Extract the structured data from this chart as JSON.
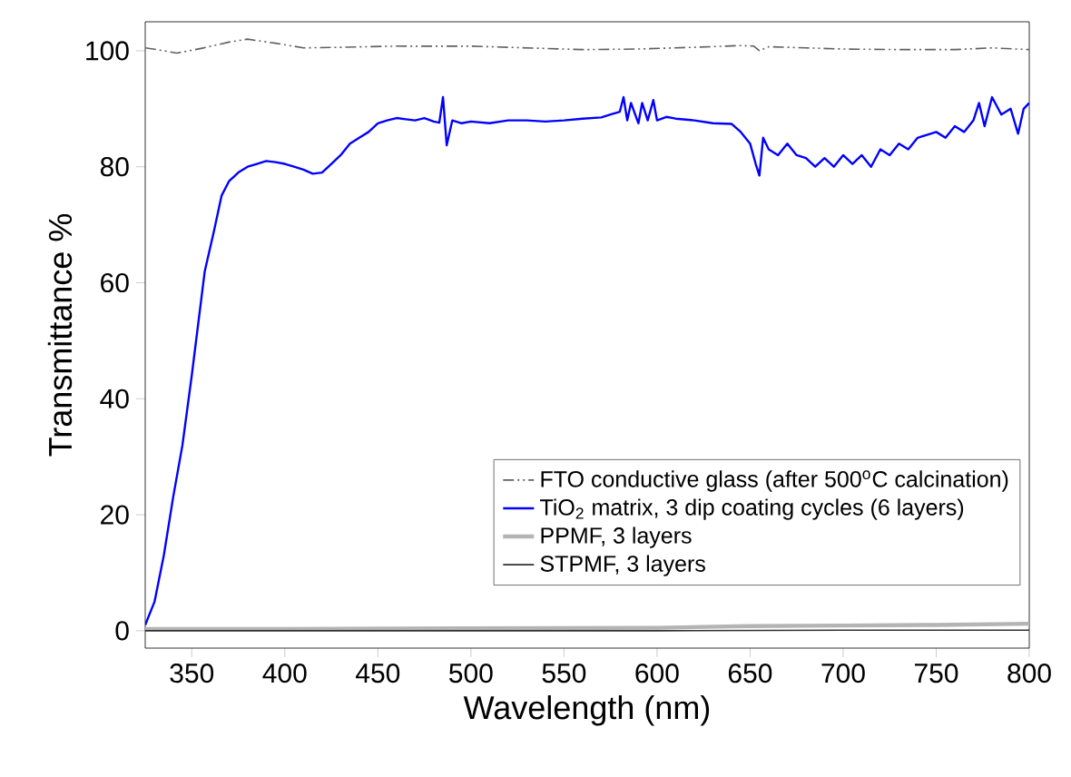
{
  "chart_data": {
    "type": "line",
    "xlabel": "Wavelength (nm)",
    "ylabel": "Transmittance %",
    "xlim": [
      325,
      800
    ],
    "ylim": [
      -3,
      105
    ],
    "xticks": [
      350,
      400,
      450,
      500,
      550,
      600,
      650,
      700,
      750,
      800
    ],
    "yticks": [
      0,
      20,
      40,
      60,
      80,
      100
    ],
    "grid": false,
    "legend": "bottom right",
    "marker": "none",
    "series": [
      {
        "name": "FTO conductive glass (after 500$^{o}$C calcination)",
        "color": "#606060",
        "line_style": "dashdot",
        "x": [
          325,
          335,
          342,
          355,
          370,
          380,
          395,
          410,
          430,
          460,
          500,
          530,
          560,
          590,
          620,
          645,
          652,
          655,
          660,
          680,
          700,
          730,
          760,
          780,
          800
        ],
        "values": [
          100.5,
          100,
          99.6,
          100.4,
          101.5,
          102,
          101.3,
          100.5,
          100.6,
          100.8,
          100.8,
          100.5,
          100.2,
          100.3,
          100.6,
          100.9,
          100.8,
          100,
          100.7,
          100.5,
          100.3,
          100.2,
          100.2,
          100.5,
          100.2
        ]
      },
      {
        "name": "TiO$_{2}$ matrix, 3 dip coating cycles (6 layers)",
        "color": "#0000ff",
        "line_style": "solid",
        "x": [
          325,
          330,
          335,
          340,
          345,
          350,
          357,
          362,
          366,
          370,
          375,
          380,
          385,
          390,
          395,
          400,
          405,
          410,
          415,
          420,
          425,
          430,
          435,
          440,
          445,
          450,
          455,
          460,
          465,
          470,
          475,
          480,
          483,
          485,
          487,
          490,
          495,
          500,
          510,
          520,
          530,
          540,
          550,
          560,
          570,
          575,
          580,
          582,
          584,
          586,
          590,
          592,
          595,
          598,
          600,
          605,
          610,
          620,
          630,
          640,
          645,
          650,
          653,
          655,
          657,
          660,
          665,
          670,
          675,
          680,
          685,
          690,
          695,
          700,
          705,
          710,
          715,
          720,
          725,
          730,
          735,
          740,
          745,
          750,
          755,
          760,
          765,
          770,
          773,
          776,
          780,
          785,
          790,
          794,
          797,
          800
        ],
        "values": [
          1,
          5,
          13,
          23,
          32,
          44,
          62,
          69,
          75,
          77.5,
          79,
          80,
          80.5,
          81,
          80.8,
          80.5,
          80,
          79.5,
          78.8,
          79,
          80.5,
          82,
          84,
          85,
          86,
          87.5,
          88,
          88.4,
          88.2,
          88,
          88.4,
          87.8,
          87.6,
          92,
          83.7,
          88,
          87.5,
          87.8,
          87.5,
          88,
          88,
          87.8,
          88,
          88.3,
          88.5,
          89,
          89.5,
          92,
          88,
          91,
          87.5,
          91,
          88,
          91.5,
          88,
          88.6,
          88.3,
          88,
          87.5,
          87.4,
          86,
          84,
          80.5,
          78.5,
          85,
          83,
          82,
          84,
          82,
          81.5,
          80,
          81.5,
          80,
          82,
          80.5,
          82,
          80,
          83,
          82,
          84,
          83,
          85,
          85.5,
          86,
          85,
          87,
          86,
          88,
          91,
          87,
          92,
          89,
          90,
          85.7,
          90,
          91
        ]
      },
      {
        "name": "PPMF, 3 layers",
        "color": "#b4b4b4",
        "line_style": "solid",
        "x": [
          325,
          400,
          500,
          600,
          650,
          700,
          750,
          800
        ],
        "values": [
          0.3,
          0.3,
          0.4,
          0.5,
          0.8,
          0.9,
          1,
          1.2
        ]
      },
      {
        "name": "STPMF, 3 layers",
        "color": "#303030",
        "line_style": "solid",
        "x": [
          325,
          400,
          500,
          600,
          700,
          800
        ],
        "values": [
          0,
          0,
          0,
          0,
          0.1,
          0.1
        ]
      }
    ]
  }
}
